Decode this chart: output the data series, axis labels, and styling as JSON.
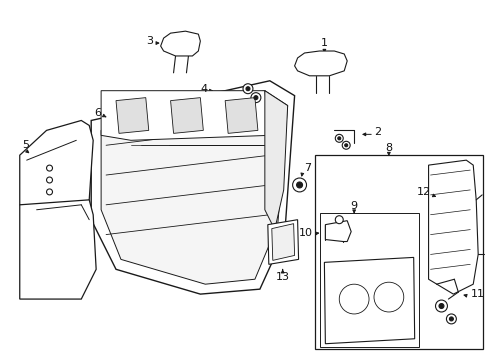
{
  "bg_color": "#ffffff",
  "line_color": "#1a1a1a",
  "label_color": "#111111",
  "fig_width": 4.9,
  "fig_height": 3.6,
  "dpi": 100
}
